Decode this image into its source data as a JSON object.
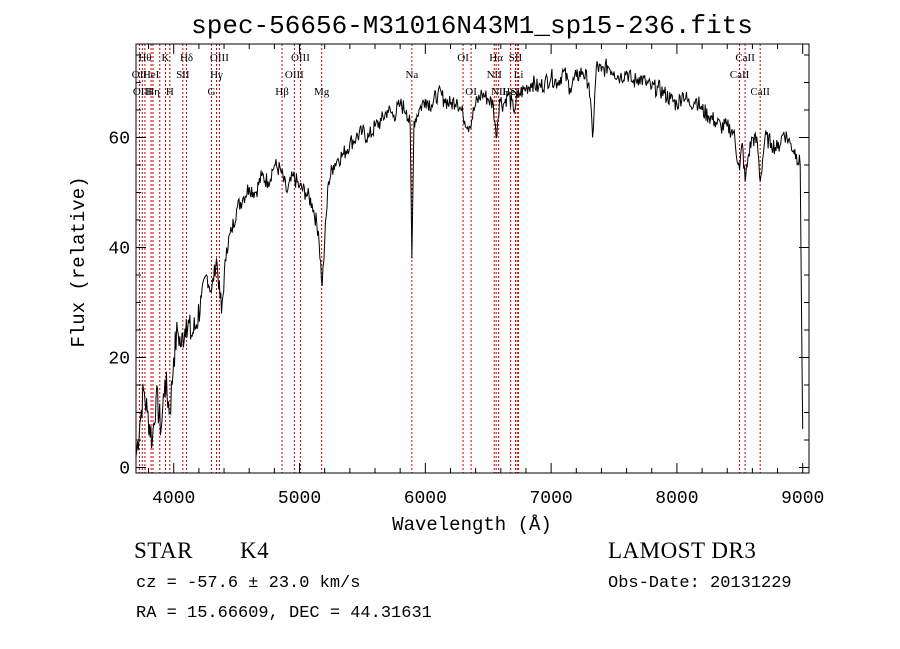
{
  "chart_data": {
    "type": "line",
    "title": "spec-56656-M31016N43M1_sp15-236.fits",
    "xlabel": "Wavelength (Å)",
    "ylabel": "Flux (relative)",
    "xlim": [
      3700,
      9050
    ],
    "ylim": [
      -1,
      77
    ],
    "xticks": [
      4000,
      5000,
      6000,
      7000,
      8000,
      9000
    ],
    "yticks": [
      0,
      20,
      40,
      60
    ],
    "series": [
      {
        "name": "flux",
        "x": [
          3700,
          3730,
          3760,
          3790,
          3830,
          3860,
          3900,
          3930,
          3970,
          4000,
          4030,
          4060,
          4100,
          4140,
          4180,
          4220,
          4260,
          4300,
          4340,
          4380,
          4420,
          4460,
          4500,
          4550,
          4600,
          4650,
          4700,
          4750,
          4800,
          4850,
          4900,
          4950,
          5000,
          5050,
          5100,
          5150,
          5180,
          5200,
          5230,
          5270,
          5300,
          5350,
          5400,
          5450,
          5500,
          5550,
          5600,
          5650,
          5700,
          5750,
          5800,
          5850,
          5880,
          5893,
          5910,
          5950,
          6000,
          6050,
          6100,
          6150,
          6200,
          6250,
          6300,
          6350,
          6400,
          6450,
          6500,
          6540,
          6563,
          6590,
          6620,
          6660,
          6700,
          6750,
          6800,
          6850,
          6900,
          6950,
          7000,
          7050,
          7100,
          7150,
          7200,
          7250,
          7300,
          7330,
          7360,
          7400,
          7450,
          7500,
          7550,
          7600,
          7650,
          7700,
          7750,
          7800,
          7850,
          7900,
          7950,
          8000,
          8050,
          8100,
          8150,
          8200,
          8250,
          8300,
          8350,
          8400,
          8450,
          8498,
          8520,
          8542,
          8570,
          8600,
          8640,
          8662,
          8700,
          8750,
          8800,
          8850,
          8900,
          8950,
          8980,
          9000
        ],
        "values": [
          2,
          8,
          14,
          10,
          5,
          13,
          7,
          16,
          10,
          20,
          25,
          22,
          27,
          24,
          26,
          31,
          35,
          32,
          38,
          28,
          40,
          43,
          47,
          49,
          51,
          50,
          53,
          52,
          55,
          54,
          50,
          53,
          51,
          50,
          48,
          43,
          33,
          41,
          52,
          55,
          56,
          57,
          59,
          60,
          61,
          60,
          62,
          63,
          65,
          64,
          66,
          65,
          62,
          38,
          63,
          65,
          67,
          66,
          68,
          67,
          66,
          67,
          64,
          62,
          66,
          68,
          67,
          66,
          60,
          67,
          66,
          68,
          65,
          68,
          69,
          70,
          69,
          70,
          71,
          70,
          72,
          69,
          71,
          72,
          70,
          60,
          73,
          72,
          73,
          72,
          71,
          72,
          70,
          71,
          70,
          69,
          69,
          68,
          67,
          66,
          68,
          66,
          67,
          65,
          64,
          63,
          62,
          62,
          61,
          54,
          59,
          52,
          57,
          60,
          59,
          52,
          60,
          59,
          58,
          61,
          59,
          57,
          55,
          7
        ]
      }
    ],
    "lines": [
      {
        "w": 3727,
        "label": "OII",
        "row": 2
      },
      {
        "w": 3750,
        "label": "OIII",
        "row": 3
      },
      {
        "w": 3771,
        "label": "Hθ",
        "row": 1
      },
      {
        "w": 3820,
        "label": "HeI",
        "row": 2
      },
      {
        "w": 3835,
        "label": "Hη",
        "row": 3
      },
      {
        "w": 3889,
        "label": "",
        "row": 0
      },
      {
        "w": 3934,
        "label": "K",
        "row": 1
      },
      {
        "w": 3969,
        "label": "H",
        "row": 3
      },
      {
        "w": 4072,
        "label": "SII",
        "row": 2
      },
      {
        "w": 4102,
        "label": "Hδ",
        "row": 1
      },
      {
        "w": 4300,
        "label": "G",
        "row": 3
      },
      {
        "w": 4340,
        "label": "Hγ",
        "row": 2
      },
      {
        "w": 4363,
        "label": "OIII",
        "row": 1
      },
      {
        "w": 4861,
        "label": "Hβ",
        "row": 3
      },
      {
        "w": 4959,
        "label": "OIII",
        "row": 2
      },
      {
        "w": 5007,
        "label": "OIII",
        "row": 1
      },
      {
        "w": 5176,
        "label": "Mg",
        "row": 3
      },
      {
        "w": 5893,
        "label": "Na",
        "row": 2
      },
      {
        "w": 6300,
        "label": "OI",
        "row": 1
      },
      {
        "w": 6364,
        "label": "OI",
        "row": 3
      },
      {
        "w": 6548,
        "label": "NII",
        "row": 2
      },
      {
        "w": 6563,
        "label": "Hα",
        "row": 1
      },
      {
        "w": 6583,
        "label": "NII",
        "row": 3
      },
      {
        "w": 6678,
        "label": "HeI",
        "row": 3
      },
      {
        "w": 6717,
        "label": "SII",
        "row": 1
      },
      {
        "w": 6731,
        "label": "SII",
        "row": 3
      },
      {
        "w": 6741,
        "label": "Li",
        "row": 2
      },
      {
        "w": 8498,
        "label": "CaII",
        "row": 2
      },
      {
        "w": 8542,
        "label": "CaII",
        "row": 1
      },
      {
        "w": 8662,
        "label": "CaII",
        "row": 3
      }
    ]
  },
  "info": {
    "object_type": "STAR",
    "spec_class": "K4",
    "survey": "LAMOST DR3",
    "redshift": "cz = -57.6 ± 23.0 km/s",
    "obs_date": "Obs-Date: 20131229",
    "coords": "RA =  15.66609, DEC =  44.31631"
  }
}
